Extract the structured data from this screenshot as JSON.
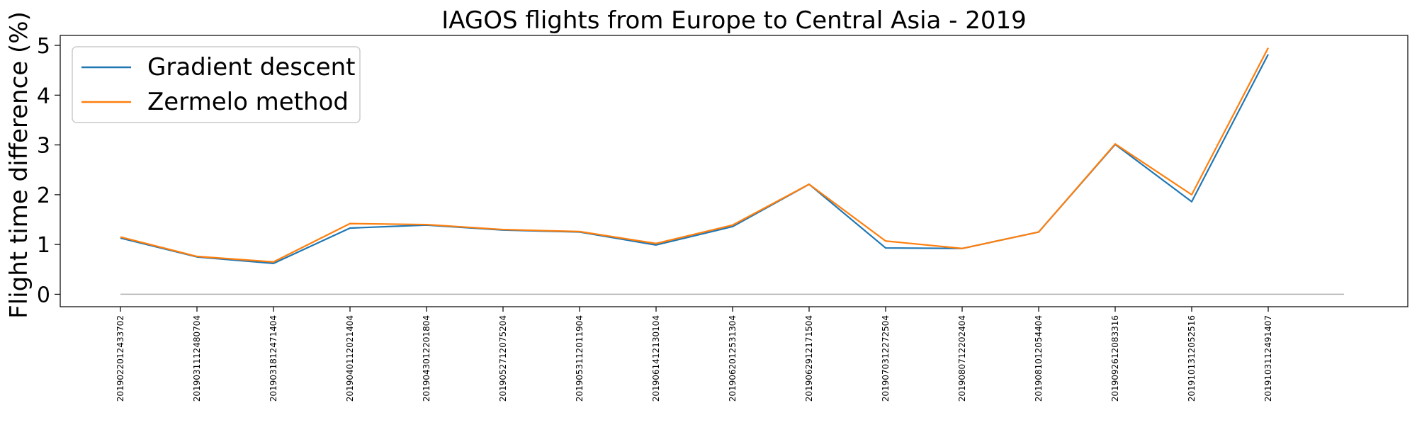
{
  "chart_data": {
    "type": "line",
    "title": "IAGOS flights from Europe to Central Asia - 2019",
    "xlabel": "",
    "ylabel": "Flight time difference (%)",
    "x": [
      "2019022012433702",
      "2019031112480704",
      "2019031812471404",
      "2019040112021404",
      "2019043012201804",
      "2019052712075204",
      "2019053112011904",
      "2019061412130104",
      "2019062012531304",
      "2019062912171504",
      "2019070312272504",
      "2019080712202404",
      "2019081012054404",
      "2019092612083316",
      "2019101312052516",
      "2019103112491407"
    ],
    "series": [
      {
        "name": "Gradient descent",
        "color": "#1f77b4",
        "values": [
          1.13,
          0.75,
          0.62,
          1.33,
          1.39,
          1.29,
          1.25,
          0.99,
          1.36,
          2.21,
          0.93,
          0.92,
          1.25,
          3.01,
          1.86,
          4.82
        ]
      },
      {
        "name": "Zermelo method",
        "color": "#ff7f0e",
        "values": [
          1.15,
          0.76,
          0.65,
          1.42,
          1.4,
          1.3,
          1.26,
          1.02,
          1.39,
          2.21,
          1.07,
          0.92,
          1.25,
          3.02,
          2.0,
          4.95
        ]
      }
    ],
    "yticks": [
      "0",
      "1",
      "2",
      "3",
      "4",
      "5"
    ],
    "ylim": [
      -0.25,
      5.2
    ],
    "baseline": 0,
    "baseline_color": "#b0b0b0",
    "grid": false,
    "legend_position": "upper-left"
  }
}
